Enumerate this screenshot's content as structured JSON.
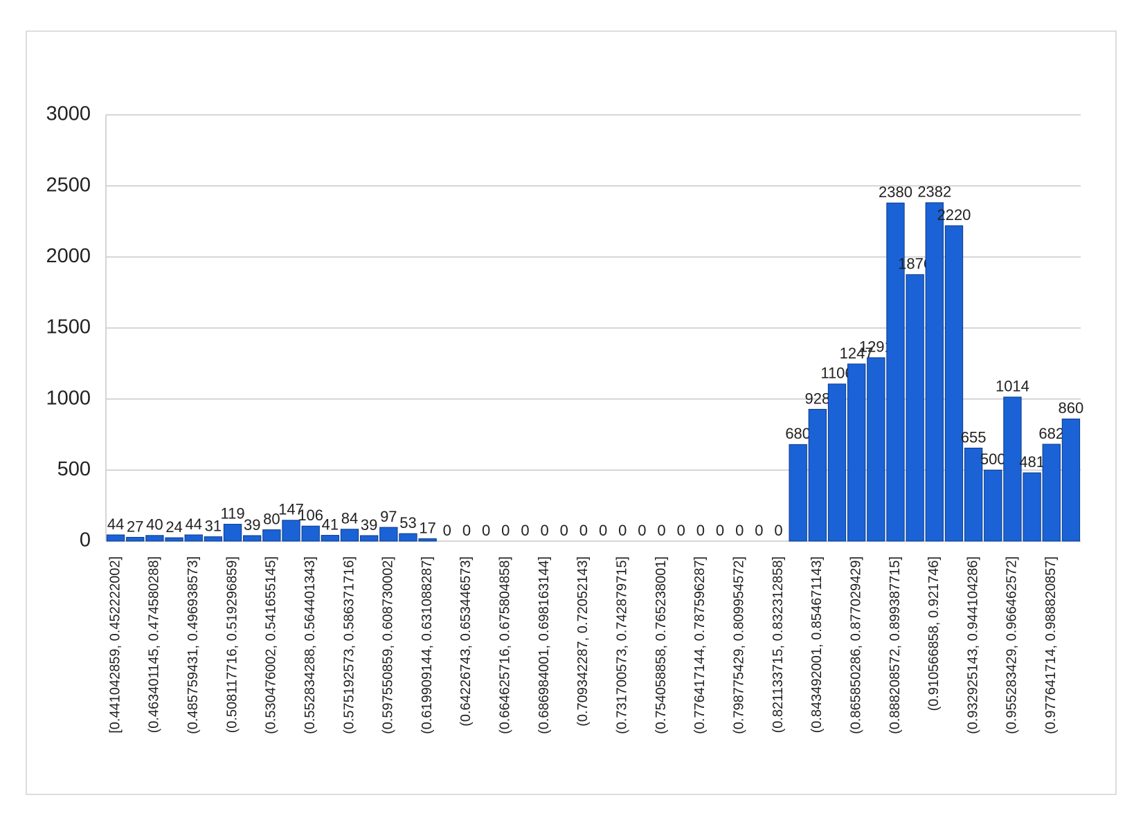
{
  "chart_data": {
    "type": "bar",
    "categories": [
      "[0.441042859, 0.452222002]",
      null,
      "(0.463401145, 0.474580288]",
      null,
      "(0.485759431, 0.496938573]",
      null,
      "(0.508117716, 0.519296859]",
      null,
      "(0.530476002, 0.541655145]",
      null,
      "(0.552834288, 0.564401343]",
      null,
      "(0.575192573, 0.586371716]",
      null,
      "(0.597550859, 0.608730002]",
      null,
      "(0.619909144, 0.631088287]",
      null,
      "(0.64226743, 0.653446573]",
      null,
      "(0.664625716, 0.675804858]",
      null,
      "(0.686984001, 0.698163144]",
      null,
      "(0.709342287, 0.72052143]",
      null,
      "(0.731700573, 0.742879715]",
      null,
      "(0.754058858, 0.765238001]",
      null,
      "(0.776417144, 0.787596287]",
      null,
      "(0.798775429, 0.809954572]",
      null,
      "(0.821133715, 0.832312858]",
      null,
      "(0.843492001, 0.854671143]",
      null,
      "(0.865850286, 0.877029429]",
      null,
      "(0.888208572, 0.899387715]",
      null,
      "(0.910566858, 0.921746]",
      null,
      "(0.932925143, 0.944104286]",
      null,
      "(0.955283429, 0.966462572]",
      null,
      "(0.977641714, 0.988820857]",
      null
    ],
    "values": [
      44,
      27,
      40,
      24,
      44,
      31,
      119,
      39,
      80,
      147,
      106,
      41,
      84,
      39,
      97,
      53,
      17,
      0,
      0,
      0,
      0,
      0,
      0,
      0,
      0,
      0,
      0,
      0,
      0,
      0,
      0,
      0,
      0,
      0,
      0,
      680,
      928,
      1106,
      1247,
      1291,
      2380,
      1876,
      2382,
      2220,
      655,
      500,
      1014,
      481,
      682,
      860
    ],
    "color": "#1a62d6",
    "ylim": [
      0,
      3000
    ],
    "yticks": [
      0,
      500,
      1000,
      1500,
      2000,
      2500,
      3000
    ],
    "grid": true
  }
}
